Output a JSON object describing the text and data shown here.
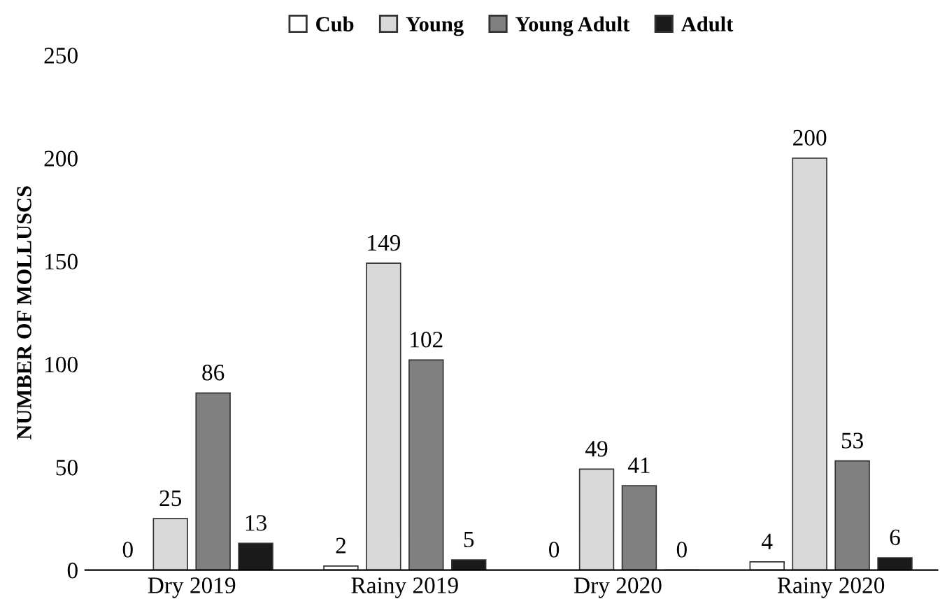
{
  "chart_data": {
    "type": "bar",
    "ylabel": "NUMBER OF MOLLUSCS",
    "categories": [
      "Dry 2019",
      "Rainy 2019",
      "Dry 2020",
      "Rainy 2020"
    ],
    "series": [
      {
        "name": "Cub",
        "color": "#ffffff",
        "values": [
          0,
          2,
          0,
          4
        ]
      },
      {
        "name": "Young",
        "color": "#d9d9d9",
        "values": [
          25,
          149,
          49,
          200
        ]
      },
      {
        "name": "Young Adult",
        "color": "#808080",
        "values": [
          86,
          102,
          41,
          53
        ]
      },
      {
        "name": "Adult",
        "color": "#1a1a1a",
        "values": [
          13,
          5,
          0,
          6
        ]
      }
    ],
    "ylim": [
      0,
      250
    ],
    "yticks": [
      0,
      50,
      100,
      150,
      200,
      250
    ],
    "grid": false,
    "legend": "top",
    "data_labels": true
  }
}
